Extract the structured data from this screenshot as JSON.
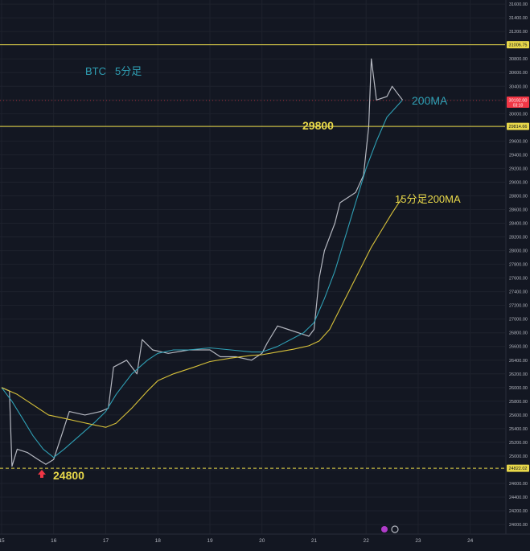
{
  "chart_data": {
    "type": "line",
    "instrument_label": "BTC",
    "timeframe_label": "5分足",
    "y_ticks": [
      24000,
      24200,
      24400,
      24600,
      24800,
      25000,
      25200,
      25400,
      25600,
      25800,
      26000,
      26200,
      26400,
      26600,
      26800,
      27000,
      27200,
      27400,
      27600,
      27800,
      28000,
      28200,
      28400,
      28600,
      28800,
      29000,
      29200,
      29400,
      29600,
      29800,
      30000,
      30200,
      30400,
      30600,
      30800,
      31000,
      31200,
      31400,
      31600
    ],
    "y_tick_decimals": 2,
    "ylim": [
      23860,
      31660
    ],
    "x_ticks": [
      "15",
      "16",
      "17",
      "18",
      "19",
      "20",
      "21",
      "22",
      "23",
      "24"
    ],
    "xlim": [
      15,
      24.7
    ],
    "horizontal_levels": [
      {
        "price_tag": "31006.75",
        "value": 31006.75,
        "style": "solid",
        "color": "#e8d84a"
      },
      {
        "price_tag": "29814.66",
        "value": 29814.66,
        "style": "solid",
        "color": "#e8d84a"
      },
      {
        "price_tag": "24822.02",
        "value": 24822.02,
        "style": "dashed",
        "color": "#e8d84a"
      }
    ],
    "current_price_tag": {
      "value": 30192.0,
      "label": "30192.00",
      "sub": "03:10",
      "color": "#f23645"
    },
    "series": [
      {
        "name": "",
        "kind": "price",
        "color": "#d1d4dc",
        "x": [
          15.0,
          15.15,
          15.2,
          15.3,
          15.5,
          15.7,
          15.85,
          16.0,
          16.15,
          16.3,
          16.6,
          16.9,
          17.05,
          17.15,
          17.4,
          17.6,
          17.7,
          17.9,
          18.2,
          18.6,
          19.0,
          19.2,
          19.5,
          19.8,
          20.0,
          20.1,
          20.3,
          20.5,
          20.7,
          20.9,
          21.0,
          21.1,
          21.2,
          21.4,
          21.5,
          21.8,
          21.95,
          22.05,
          22.1,
          22.2,
          22.4,
          22.5,
          22.6,
          22.7
        ],
        "y": [
          26000,
          25950,
          24850,
          25100,
          25050,
          24950,
          24880,
          24950,
          25300,
          25650,
          25600,
          25650,
          25700,
          26300,
          26400,
          26200,
          26700,
          26550,
          26500,
          26550,
          26550,
          26450,
          26450,
          26400,
          26500,
          26650,
          26900,
          26850,
          26800,
          26750,
          26850,
          27600,
          28000,
          28400,
          28700,
          28850,
          29100,
          29800,
          30800,
          30200,
          30250,
          30400,
          30300,
          30200
        ]
      },
      {
        "name": "200MA",
        "kind": "ma",
        "color": "#2fa0b5",
        "x": [
          15.0,
          15.2,
          15.4,
          15.6,
          15.8,
          16.0,
          16.2,
          16.5,
          16.8,
          17.0,
          17.2,
          17.5,
          17.8,
          18.0,
          18.3,
          18.6,
          19.0,
          19.4,
          19.8,
          20.0,
          20.3,
          20.6,
          20.8,
          21.0,
          21.2,
          21.4,
          21.6,
          21.8,
          22.0,
          22.2,
          22.4,
          22.7
        ],
        "y": [
          26000,
          25800,
          25550,
          25300,
          25100,
          24980,
          25100,
          25300,
          25500,
          25650,
          25900,
          26200,
          26400,
          26500,
          26550,
          26550,
          26580,
          26550,
          26520,
          26520,
          26600,
          26720,
          26800,
          26950,
          27300,
          27700,
          28200,
          28700,
          29200,
          29600,
          29950,
          30200
        ]
      },
      {
        "name": "15分足200MA",
        "kind": "ma",
        "color": "#d8c23a",
        "x": [
          15.0,
          15.3,
          15.6,
          15.9,
          16.2,
          16.5,
          16.8,
          17.0,
          17.2,
          17.5,
          17.8,
          18.0,
          18.3,
          18.7,
          19.0,
          19.4,
          19.8,
          20.0,
          20.3,
          20.6,
          20.9,
          21.1,
          21.3,
          21.5,
          21.7,
          21.9,
          22.1,
          22.3,
          22.5,
          22.7
        ],
        "y": [
          26000,
          25900,
          25750,
          25600,
          25550,
          25500,
          25450,
          25420,
          25480,
          25700,
          25950,
          26100,
          26200,
          26300,
          26380,
          26430,
          26470,
          26480,
          26520,
          26560,
          26610,
          26680,
          26850,
          27150,
          27450,
          27750,
          28050,
          28300,
          28550,
          28780
        ]
      }
    ],
    "annotations": [
      {
        "text": "200MA",
        "color": "#2fa0b5"
      },
      {
        "text": "29800",
        "color": "#e8d84a"
      },
      {
        "text": "15分足200MA",
        "color": "#e8d84a"
      },
      {
        "text": "24800",
        "color": "#e8d84a"
      }
    ],
    "marker": {
      "type": "up-arrow",
      "color": "#f23645"
    },
    "colors": {
      "background": "#131722",
      "axis_text": "#b2b5be",
      "grid": "#1e222d",
      "tag_text": "#131722"
    }
  }
}
